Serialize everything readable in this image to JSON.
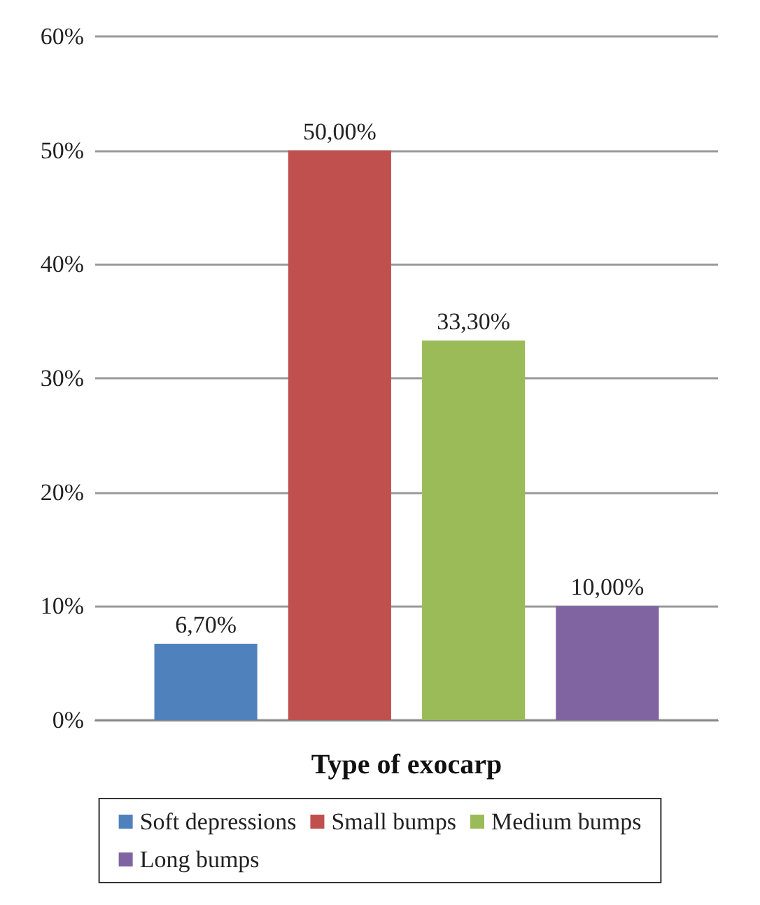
{
  "chart_data": {
    "type": "bar",
    "xlabel": "Type of exocarp",
    "categories": [
      null
    ],
    "series": [
      {
        "name": "Soft depressions",
        "color": "#4f81bd",
        "values": [
          6.7
        ],
        "value_labels": [
          "6,70%"
        ]
      },
      {
        "name": "Small bumps",
        "color": "#c0504d",
        "values": [
          50
        ],
        "value_labels": [
          "50,00%"
        ]
      },
      {
        "name": "Medium bumps",
        "color": "#9bbb59",
        "values": [
          33.3
        ],
        "value_labels": [
          "33,30%"
        ]
      },
      {
        "name": "Long bumps",
        "color": "#8064a2",
        "values": [
          10
        ],
        "value_labels": [
          "10,00%"
        ]
      }
    ],
    "ylim": [
      0,
      60
    ],
    "yticks": [
      {
        "value": 0,
        "label": "0%"
      },
      {
        "value": 10,
        "label": "10%"
      },
      {
        "value": 20,
        "label": "20%"
      },
      {
        "value": 30,
        "label": "30%"
      },
      {
        "value": 40,
        "label": "40%"
      },
      {
        "value": 50,
        "label": "50%"
      },
      {
        "value": 60,
        "label": "60%"
      }
    ],
    "grid": "y",
    "legend": "bottom"
  }
}
